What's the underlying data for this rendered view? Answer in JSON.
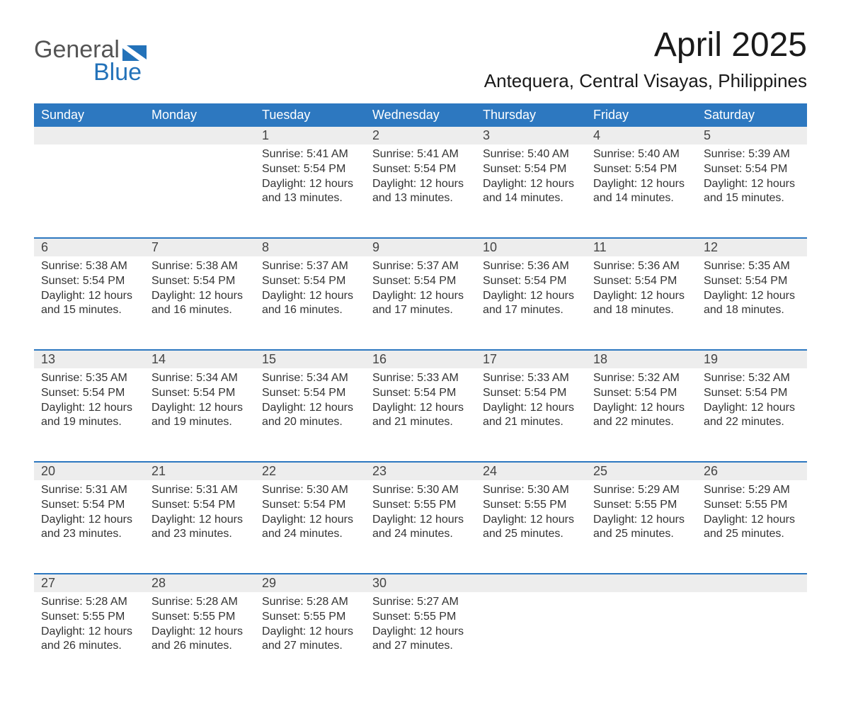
{
  "brand": {
    "part1": "General",
    "part2": "Blue"
  },
  "title": "April 2025",
  "location": "Antequera, Central Visayas, Philippines",
  "colors": {
    "header_blue": "#2d78c0",
    "light_gray": "#ededed",
    "text": "#333333",
    "logo_gray": "#545454",
    "logo_blue": "#2372b9",
    "background": "#ffffff"
  },
  "typography": {
    "title_fontsize_pt": 36,
    "location_fontsize_pt": 20,
    "header_fontsize_pt": 14,
    "cell_fontsize_pt": 12
  },
  "layout": {
    "columns": 7,
    "rows": 5
  },
  "weekday_headers": [
    "Sunday",
    "Monday",
    "Tuesday",
    "Wednesday",
    "Thursday",
    "Friday",
    "Saturday"
  ],
  "weeks": [
    [
      null,
      null,
      {
        "n": "1",
        "sr": "Sunrise: 5:41 AM",
        "ss": "Sunset: 5:54 PM",
        "d1": "Daylight: 12 hours",
        "d2": "and 13 minutes."
      },
      {
        "n": "2",
        "sr": "Sunrise: 5:41 AM",
        "ss": "Sunset: 5:54 PM",
        "d1": "Daylight: 12 hours",
        "d2": "and 13 minutes."
      },
      {
        "n": "3",
        "sr": "Sunrise: 5:40 AM",
        "ss": "Sunset: 5:54 PM",
        "d1": "Daylight: 12 hours",
        "d2": "and 14 minutes."
      },
      {
        "n": "4",
        "sr": "Sunrise: 5:40 AM",
        "ss": "Sunset: 5:54 PM",
        "d1": "Daylight: 12 hours",
        "d2": "and 14 minutes."
      },
      {
        "n": "5",
        "sr": "Sunrise: 5:39 AM",
        "ss": "Sunset: 5:54 PM",
        "d1": "Daylight: 12 hours",
        "d2": "and 15 minutes."
      }
    ],
    [
      {
        "n": "6",
        "sr": "Sunrise: 5:38 AM",
        "ss": "Sunset: 5:54 PM",
        "d1": "Daylight: 12 hours",
        "d2": "and 15 minutes."
      },
      {
        "n": "7",
        "sr": "Sunrise: 5:38 AM",
        "ss": "Sunset: 5:54 PM",
        "d1": "Daylight: 12 hours",
        "d2": "and 16 minutes."
      },
      {
        "n": "8",
        "sr": "Sunrise: 5:37 AM",
        "ss": "Sunset: 5:54 PM",
        "d1": "Daylight: 12 hours",
        "d2": "and 16 minutes."
      },
      {
        "n": "9",
        "sr": "Sunrise: 5:37 AM",
        "ss": "Sunset: 5:54 PM",
        "d1": "Daylight: 12 hours",
        "d2": "and 17 minutes."
      },
      {
        "n": "10",
        "sr": "Sunrise: 5:36 AM",
        "ss": "Sunset: 5:54 PM",
        "d1": "Daylight: 12 hours",
        "d2": "and 17 minutes."
      },
      {
        "n": "11",
        "sr": "Sunrise: 5:36 AM",
        "ss": "Sunset: 5:54 PM",
        "d1": "Daylight: 12 hours",
        "d2": "and 18 minutes."
      },
      {
        "n": "12",
        "sr": "Sunrise: 5:35 AM",
        "ss": "Sunset: 5:54 PM",
        "d1": "Daylight: 12 hours",
        "d2": "and 18 minutes."
      }
    ],
    [
      {
        "n": "13",
        "sr": "Sunrise: 5:35 AM",
        "ss": "Sunset: 5:54 PM",
        "d1": "Daylight: 12 hours",
        "d2": "and 19 minutes."
      },
      {
        "n": "14",
        "sr": "Sunrise: 5:34 AM",
        "ss": "Sunset: 5:54 PM",
        "d1": "Daylight: 12 hours",
        "d2": "and 19 minutes."
      },
      {
        "n": "15",
        "sr": "Sunrise: 5:34 AM",
        "ss": "Sunset: 5:54 PM",
        "d1": "Daylight: 12 hours",
        "d2": "and 20 minutes."
      },
      {
        "n": "16",
        "sr": "Sunrise: 5:33 AM",
        "ss": "Sunset: 5:54 PM",
        "d1": "Daylight: 12 hours",
        "d2": "and 21 minutes."
      },
      {
        "n": "17",
        "sr": "Sunrise: 5:33 AM",
        "ss": "Sunset: 5:54 PM",
        "d1": "Daylight: 12 hours",
        "d2": "and 21 minutes."
      },
      {
        "n": "18",
        "sr": "Sunrise: 5:32 AM",
        "ss": "Sunset: 5:54 PM",
        "d1": "Daylight: 12 hours",
        "d2": "and 22 minutes."
      },
      {
        "n": "19",
        "sr": "Sunrise: 5:32 AM",
        "ss": "Sunset: 5:54 PM",
        "d1": "Daylight: 12 hours",
        "d2": "and 22 minutes."
      }
    ],
    [
      {
        "n": "20",
        "sr": "Sunrise: 5:31 AM",
        "ss": "Sunset: 5:54 PM",
        "d1": "Daylight: 12 hours",
        "d2": "and 23 minutes."
      },
      {
        "n": "21",
        "sr": "Sunrise: 5:31 AM",
        "ss": "Sunset: 5:54 PM",
        "d1": "Daylight: 12 hours",
        "d2": "and 23 minutes."
      },
      {
        "n": "22",
        "sr": "Sunrise: 5:30 AM",
        "ss": "Sunset: 5:54 PM",
        "d1": "Daylight: 12 hours",
        "d2": "and 24 minutes."
      },
      {
        "n": "23",
        "sr": "Sunrise: 5:30 AM",
        "ss": "Sunset: 5:55 PM",
        "d1": "Daylight: 12 hours",
        "d2": "and 24 minutes."
      },
      {
        "n": "24",
        "sr": "Sunrise: 5:30 AM",
        "ss": "Sunset: 5:55 PM",
        "d1": "Daylight: 12 hours",
        "d2": "and 25 minutes."
      },
      {
        "n": "25",
        "sr": "Sunrise: 5:29 AM",
        "ss": "Sunset: 5:55 PM",
        "d1": "Daylight: 12 hours",
        "d2": "and 25 minutes."
      },
      {
        "n": "26",
        "sr": "Sunrise: 5:29 AM",
        "ss": "Sunset: 5:55 PM",
        "d1": "Daylight: 12 hours",
        "d2": "and 25 minutes."
      }
    ],
    [
      {
        "n": "27",
        "sr": "Sunrise: 5:28 AM",
        "ss": "Sunset: 5:55 PM",
        "d1": "Daylight: 12 hours",
        "d2": "and 26 minutes."
      },
      {
        "n": "28",
        "sr": "Sunrise: 5:28 AM",
        "ss": "Sunset: 5:55 PM",
        "d1": "Daylight: 12 hours",
        "d2": "and 26 minutes."
      },
      {
        "n": "29",
        "sr": "Sunrise: 5:28 AM",
        "ss": "Sunset: 5:55 PM",
        "d1": "Daylight: 12 hours",
        "d2": "and 27 minutes."
      },
      {
        "n": "30",
        "sr": "Sunrise: 5:27 AM",
        "ss": "Sunset: 5:55 PM",
        "d1": "Daylight: 12 hours",
        "d2": "and 27 minutes."
      },
      null,
      null,
      null
    ]
  ]
}
